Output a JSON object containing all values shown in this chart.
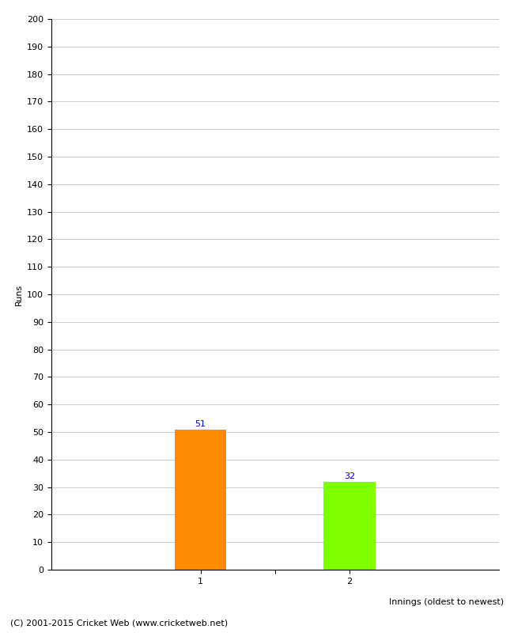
{
  "categories": [
    "1",
    "2"
  ],
  "values": [
    51,
    32
  ],
  "bar_colors": [
    "#FF8C00",
    "#7FFF00"
  ],
  "xlabel": "Innings (oldest to newest)",
  "ylabel": "Runs",
  "ylim": [
    0,
    200
  ],
  "ytick_step": 10,
  "value_label_color": "#0000CC",
  "value_label_fontsize": 8,
  "axis_label_fontsize": 8,
  "tick_label_fontsize": 8,
  "footer_text": "(C) 2001-2015 Cricket Web (www.cricketweb.net)",
  "footer_fontsize": 8,
  "background_color": "#FFFFFF",
  "grid_color": "#CCCCCC",
  "bar_width": 0.35
}
